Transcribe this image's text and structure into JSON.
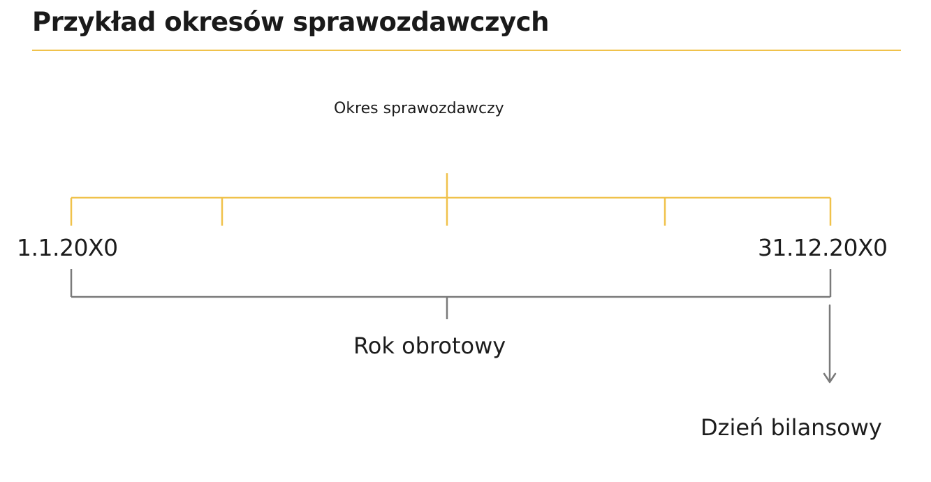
{
  "slide": {
    "title": "Przykład okresów sprawozdawczych"
  },
  "diagram": {
    "reporting_period_label": "Okres sprawozdawczy",
    "start_date": "1.1.20X0",
    "end_date": "31.12.20X0",
    "fiscal_year_label": "Rok obrotowy",
    "balance_sheet_day_label": "Dzień bilansowy"
  },
  "colors": {
    "accent_yellow": "#f0c24b",
    "bracket_gray": "#7a7a7a",
    "text": "#1c1c1c"
  }
}
